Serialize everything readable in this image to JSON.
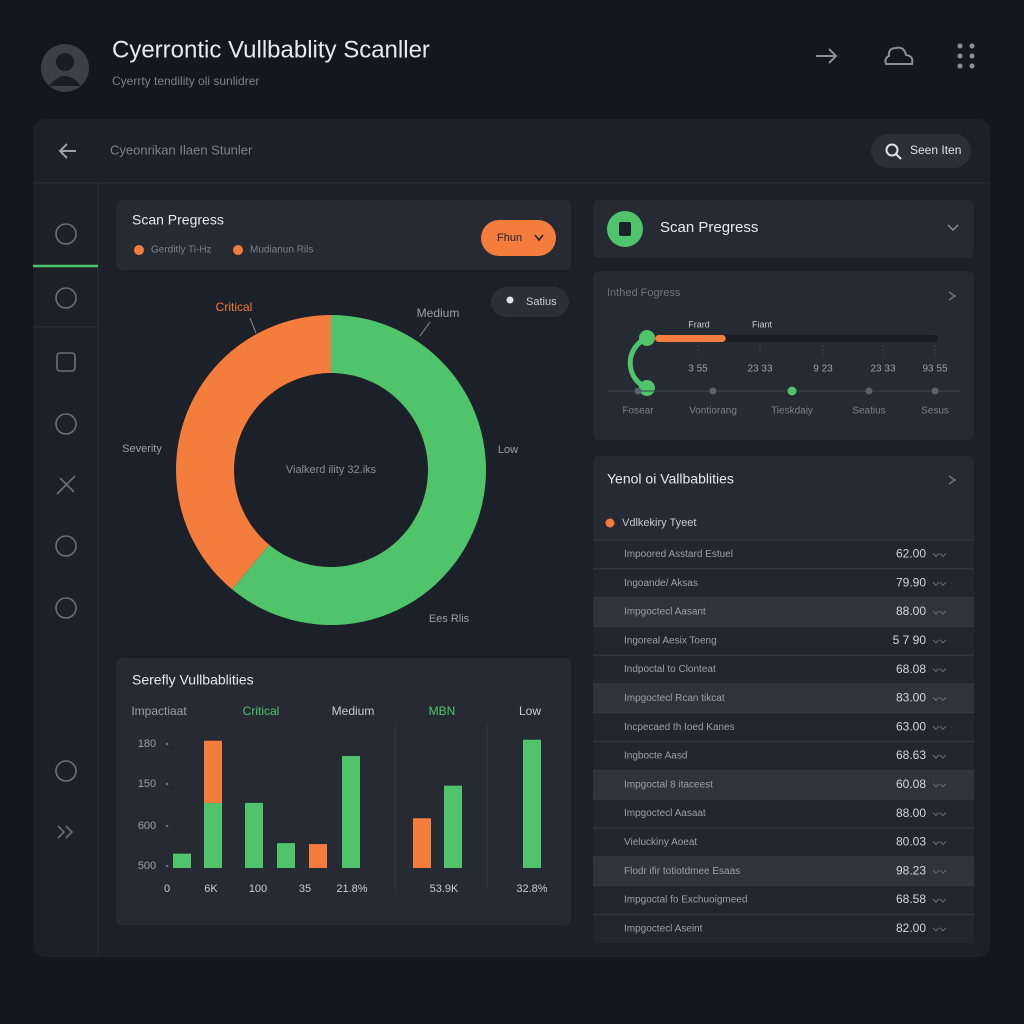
{
  "header": {
    "title": "Cyerrontic Vullbablity Scanller",
    "subtitle": "Cyerrty tendility oli sunlidrer"
  },
  "toolbar": {
    "breadcrumb": "Cyeonrikan Ilaen Stunler",
    "search_button": "Seen Iten"
  },
  "scan_card": {
    "title": "Scan Pregress",
    "legend": [
      "Gerditly Ti-Hz",
      "Mudianun Rils"
    ],
    "button": "Fhun",
    "status_button": "Satius"
  },
  "chart_data": [
    {
      "type": "pie",
      "categories": [
        "Critical",
        "Medium"
      ],
      "values": [
        39,
        61
      ],
      "colors": [
        "#f47c3c",
        "#4fc46a"
      ],
      "annotations": [
        "Severity",
        "Low",
        "Ees Rlis"
      ],
      "center_label": "Vialkerd ility 32.iks"
    },
    {
      "type": "bar",
      "title": "Serefly Vullbablities",
      "column_headers": [
        "Impactiaat",
        "Critical",
        "Medium",
        "MBN",
        "Low"
      ],
      "y_labels": [
        "180",
        "150",
        "600",
        "500"
      ],
      "x_labels": [
        "0",
        "6K",
        "100",
        "35",
        "21.8%",
        "53.9K",
        "32.8%"
      ],
      "ylim": [
        0,
        140
      ],
      "stacked": true,
      "series": [
        {
          "color": "#4fc46a",
          "values": [
            15,
            68,
            68,
            26,
            null,
            117,
            null,
            86,
            134
          ]
        },
        {
          "color": "#f47c3c",
          "values": [
            null,
            65,
            null,
            null,
            25,
            null,
            52,
            null,
            null
          ]
        }
      ]
    }
  ],
  "progress_header": {
    "title": "Scan Pregress"
  },
  "progress_panel": {
    "title": "Inthed Fogress",
    "markers": [
      "Frard",
      "Fiant"
    ],
    "progress_percent": 25,
    "numbers": [
      "3 55",
      "23 33",
      "9 23",
      "23 33",
      "93 55"
    ],
    "steps": [
      "Fosear",
      "Vontiorang",
      "Tieskdaiy",
      "Seatius",
      "Sesus"
    ],
    "active_step": 2
  },
  "table": {
    "title": "Yenol oi Vallbablities",
    "legend": "Vdlkekiry Tyeet",
    "rows": [
      [
        "Impoored Asstard Estuel",
        "62.00"
      ],
      [
        "Ingoande/ Aksas",
        "79.90"
      ],
      [
        "Impgoctecl Aasant",
        "88.00"
      ],
      [
        "Ingoreal Aesix Toeng",
        "5 7 90"
      ],
      [
        "Indpoctal to Clonteat",
        "68.08"
      ],
      [
        "Impgoctecl Rcan tikcat",
        "83.00"
      ],
      [
        "Incpecaed th Ioed Kanes",
        "63.00"
      ],
      [
        "Ingbocte Aasd",
        "68.63"
      ],
      [
        "Impgoctal 8 itaceest",
        "60.08"
      ],
      [
        "Impgoctecl Aasaat",
        "88.00"
      ],
      [
        "Vieluckiny Aoeat",
        "80.03"
      ],
      [
        "Flodr ifir totiotdmee Esaas",
        "98.23"
      ],
      [
        "Impgoctal fo Exchuoigmeed",
        "68.58"
      ],
      [
        "Impgoctecl Aseint",
        "82.00"
      ]
    ]
  }
}
